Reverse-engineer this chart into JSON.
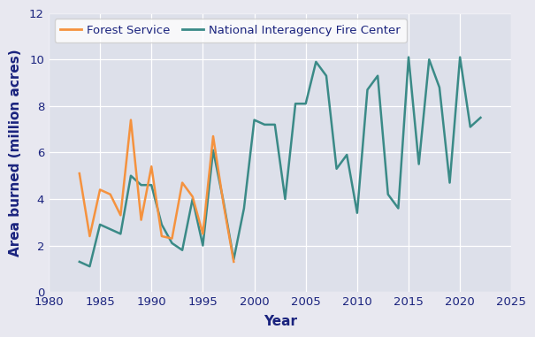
{
  "xlabel": "Year",
  "ylabel": "Area burned (million acres)",
  "outer_bg_color": "#e8e8f0",
  "plot_bg_color": "#dde0ea",
  "grid_color": "#ffffff",
  "xlim": [
    1980,
    2025
  ],
  "ylim": [
    0,
    12
  ],
  "yticks": [
    0,
    2,
    4,
    6,
    8,
    10,
    12
  ],
  "xticks": [
    1980,
    1985,
    1990,
    1995,
    2000,
    2005,
    2010,
    2015,
    2020,
    2025
  ],
  "forest_service": {
    "label": "Forest Service",
    "color": "#f5923e",
    "x": [
      1983,
      1984,
      1985,
      1986,
      1987,
      1988,
      1989,
      1990,
      1991,
      1992,
      1993,
      1994,
      1995,
      1996,
      1997,
      1998
    ],
    "y": [
      5.1,
      2.4,
      4.4,
      4.2,
      3.3,
      7.4,
      3.1,
      5.4,
      2.4,
      2.3,
      4.7,
      4.1,
      2.5,
      6.7,
      3.8,
      1.3
    ]
  },
  "nifc": {
    "label": "National Interagency Fire Center",
    "color": "#3a8a87",
    "x": [
      1983,
      1984,
      1985,
      1986,
      1987,
      1988,
      1989,
      1990,
      1991,
      1992,
      1993,
      1994,
      1995,
      1996,
      1997,
      1998,
      1999,
      2000,
      2001,
      2002,
      2003,
      2004,
      2005,
      2006,
      2007,
      2008,
      2009,
      2010,
      2011,
      2012,
      2013,
      2014,
      2015,
      2016,
      2017,
      2018,
      2019,
      2020,
      2021,
      2022
    ],
    "y": [
      1.3,
      1.1,
      2.9,
      2.7,
      2.5,
      5.0,
      4.6,
      4.6,
      2.9,
      2.1,
      1.8,
      4.0,
      2.0,
      6.1,
      3.9,
      1.4,
      3.6,
      7.4,
      7.2,
      7.2,
      4.0,
      8.1,
      8.1,
      9.9,
      9.3,
      5.3,
      5.9,
      3.4,
      8.7,
      9.3,
      4.2,
      3.6,
      10.1,
      5.5,
      10.0,
      8.8,
      4.7,
      10.1,
      7.1,
      7.5
    ]
  },
  "label_color": "#1a237e",
  "tick_color": "#1a237e",
  "legend_fontsize": 9.5,
  "axis_label_fontsize": 11,
  "tick_fontsize": 9.5,
  "linewidth": 1.8
}
